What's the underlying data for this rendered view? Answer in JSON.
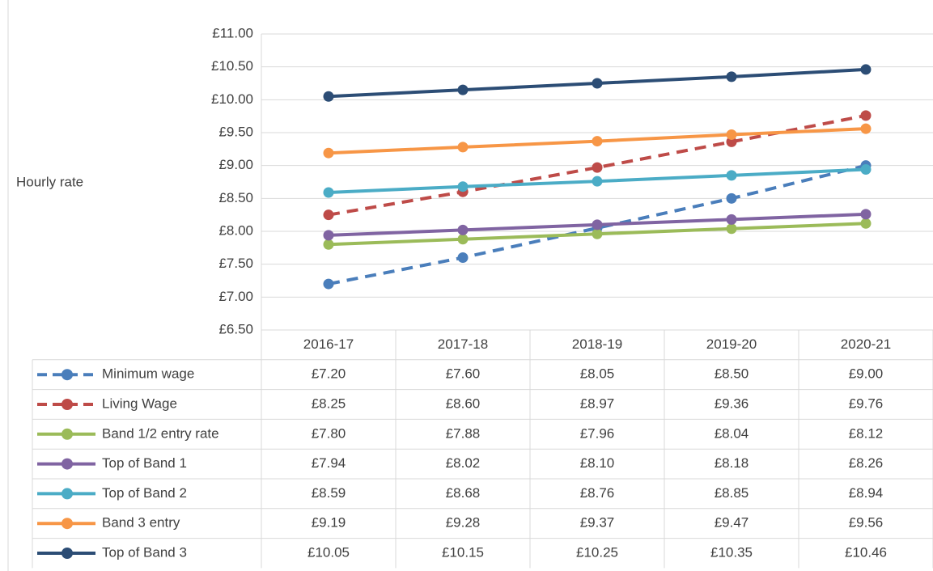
{
  "chart_data": {
    "type": "line",
    "y_label": "Hourly rate",
    "categories": [
      "2016-17",
      "2017-18",
      "2018-19",
      "2019-20",
      "2020-21"
    ],
    "ylim": [
      6.5,
      11
    ],
    "yticks": [
      {
        "value": 6.5,
        "label": "£6.50"
      },
      {
        "value": 7,
        "label": "£7.00"
      },
      {
        "value": 7.5,
        "label": "£7.50"
      },
      {
        "value": 8,
        "label": "£8.00"
      },
      {
        "value": 8.5,
        "label": "£8.50"
      },
      {
        "value": 9,
        "label": "£9.00"
      },
      {
        "value": 9.5,
        "label": "£9.50"
      },
      {
        "value": 10,
        "label": "£10.00"
      },
      {
        "value": 10.5,
        "label": "£10.50"
      },
      {
        "value": 11,
        "label": "£11.00"
      }
    ],
    "grid": true,
    "legend": "table",
    "series": [
      {
        "name": "Minimum wage",
        "color": "#4a7ebb",
        "dashed": true,
        "values": [
          7.2,
          7.6,
          8.05,
          8.5,
          9.0
        ],
        "value_labels": [
          "£7.20",
          "£7.60",
          "£8.05",
          "£8.50",
          "£9.00"
        ]
      },
      {
        "name": "Living Wage",
        "color": "#be4b48",
        "dashed": true,
        "values": [
          8.25,
          8.6,
          8.97,
          9.36,
          9.76
        ],
        "value_labels": [
          "£8.25",
          "£8.60",
          "£8.97",
          "£9.36",
          "£9.76"
        ]
      },
      {
        "name": "Band 1/2 entry rate",
        "color": "#9bbb59",
        "dashed": false,
        "values": [
          7.8,
          7.88,
          7.96,
          8.04,
          8.12
        ],
        "value_labels": [
          "£7.80",
          "£7.88",
          "£7.96",
          "£8.04",
          "£8.12"
        ]
      },
      {
        "name": "Top of Band 1",
        "color": "#8064a2",
        "dashed": false,
        "values": [
          7.94,
          8.02,
          8.1,
          8.18,
          8.26
        ],
        "value_labels": [
          "£7.94",
          "£8.02",
          "£8.10",
          "£8.18",
          "£8.26"
        ]
      },
      {
        "name": "Top of Band 2",
        "color": "#4bacc6",
        "dashed": false,
        "values": [
          8.59,
          8.68,
          8.76,
          8.85,
          8.94
        ],
        "value_labels": [
          "£8.59",
          "£8.68",
          "£8.76",
          "£8.85",
          "£8.94"
        ]
      },
      {
        "name": "Band 3 entry",
        "color": "#f79646",
        "dashed": false,
        "values": [
          9.19,
          9.28,
          9.37,
          9.47,
          9.56
        ],
        "value_labels": [
          "£9.19",
          "£9.28",
          "£9.37",
          "£9.47",
          "£9.56"
        ]
      },
      {
        "name": "Top of Band 3",
        "color": "#2c4d75",
        "dashed": false,
        "values": [
          10.05,
          10.15,
          10.25,
          10.35,
          10.46
        ],
        "value_labels": [
          "£10.05",
          "£10.15",
          "£10.25",
          "£10.35",
          "£10.46"
        ]
      }
    ]
  }
}
